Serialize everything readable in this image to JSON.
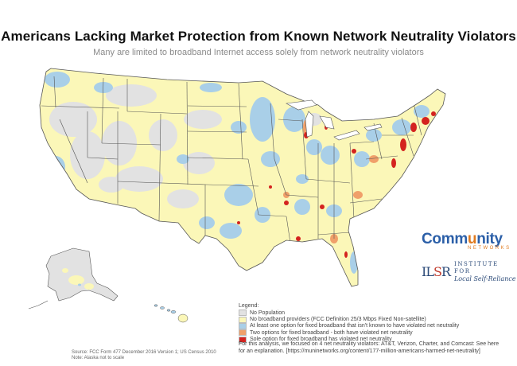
{
  "title": "Americans Lacking Market Protection from Known Network Neutrality Violators",
  "subtitle": "Many are limited to broadband Internet access solely from network neutrality violators",
  "legend": {
    "title": "Legend:",
    "items": [
      {
        "label": "No Population",
        "color": "#e2e2e2"
      },
      {
        "label": "No broadband providers (FCC Definition 25/3 Mbps Fixed Non-satellite)",
        "color": "#fbf7b8"
      },
      {
        "label": "At least one option for fixed broadband that isn't known to have violated net neutrality",
        "color": "#a9cfe8"
      },
      {
        "label": "Two options for fixed broadband - both have violated net neutrality",
        "color": "#f0a06a"
      },
      {
        "label": "Sole option for fixed broadband has violated net neutrality",
        "color": "#d4231f"
      }
    ]
  },
  "note": {
    "line1": "For this analysis, we focused on 4 net neutrality violators: AT&T, Verizon, Charter, and Comcast: See here",
    "line2": "for an explanation. [https://muninetworks.org/content/177-million-americans-harmed-net-neutrality]"
  },
  "source": {
    "line1": "Source: FCC Form 477 December 2016 Version 1; US Census 2010",
    "line2": "Note: Alaska not to scale"
  },
  "logos": {
    "community_main_a": "Comm",
    "community_main_u": "u",
    "community_main_b": "nity",
    "community_sub": "NETWORKS",
    "ilsr_mark_a": "IL",
    "ilsr_mark_s": "S",
    "ilsr_mark_r": "R",
    "ilsr_line1": "INSTITUTE FOR",
    "ilsr_line2": "Local Self-Reliance"
  },
  "colors": {
    "state_border": "#555555",
    "yellow": "#fbf7b8",
    "blue": "#a9cfe8",
    "gray": "#e2e2e2",
    "orange": "#f0a06a",
    "red": "#d4231f"
  }
}
